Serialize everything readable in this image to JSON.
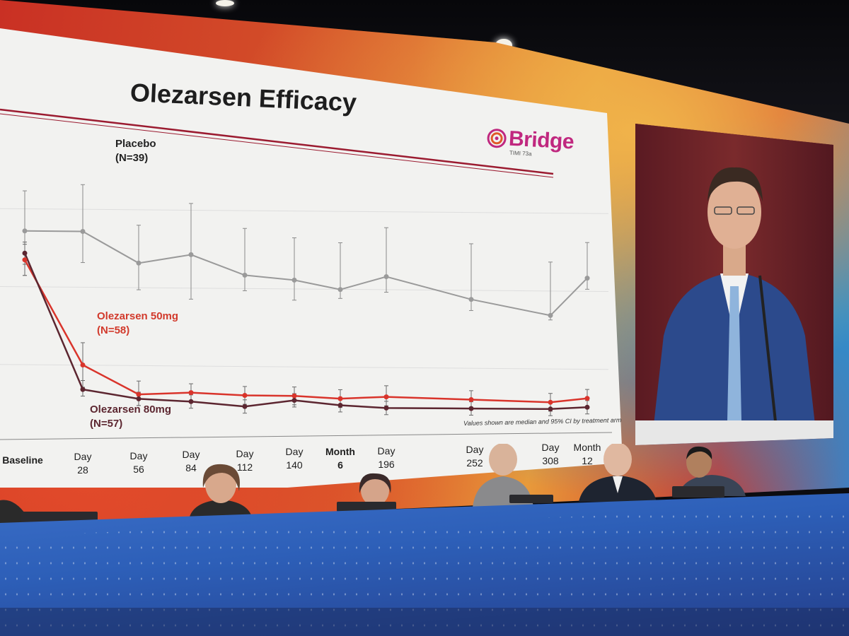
{
  "slide": {
    "title": "Olezarsen Efficacy",
    "logo_text": "Bridge",
    "logo_subtext": "TIMI 73a",
    "footnote": "Values shown are median and 95% CI by treatment arm",
    "colors": {
      "placebo": "#9a9a9a",
      "olezarsen_50mg": "#d9342b",
      "olezarsen_80mg": "#5c2630",
      "title_rule": "#9b1b30",
      "logo": "#c0287f"
    }
  },
  "chart_data": {
    "type": "line",
    "title": "Olezarsen Efficacy",
    "xlabel": "",
    "ylabel": "",
    "grid": true,
    "legend": "inline labels",
    "x_ticks": [
      {
        "top": "Baseline",
        "bottom": ""
      },
      {
        "top": "Day",
        "bottom": "28"
      },
      {
        "top": "Day",
        "bottom": "56"
      },
      {
        "top": "Day",
        "bottom": "84"
      },
      {
        "top": "Day",
        "bottom": "112"
      },
      {
        "top": "Day",
        "bottom": "140"
      },
      {
        "top": "Month",
        "bottom": "6"
      },
      {
        "top": "Day",
        "bottom": "196"
      },
      {
        "top": "Day",
        "bottom": "252"
      },
      {
        "top": "Day",
        "bottom": "308"
      },
      {
        "top": "Month",
        "bottom": "12"
      }
    ],
    "series": [
      {
        "name": "Placebo",
        "n_label": "(N=39)",
        "values": [
          100,
          100,
          86,
          90,
          81,
          79,
          75,
          81,
          71,
          64,
          81
        ],
        "ci_low": [
          80,
          86,
          74,
          70,
          74,
          70,
          71,
          74,
          66,
          62,
          76
        ],
        "ci_high": [
          118,
          121,
          103,
          113,
          102,
          98,
          96,
          103,
          96,
          88,
          97
        ]
      },
      {
        "name": "Olezarsen 50mg",
        "n_label": "(N=58)",
        "values": [
          87,
          40,
          27,
          28,
          27,
          27,
          26,
          27,
          26,
          25,
          27
        ],
        "ci_low": [
          80,
          30,
          22,
          24,
          23,
          23,
          22,
          23,
          22,
          21,
          23
        ],
        "ci_high": [
          94,
          50,
          33,
          32,
          31,
          31,
          30,
          32,
          30,
          29,
          31
        ]
      },
      {
        "name": "Olezarsen 80mg",
        "n_label": "(N=57)",
        "values": [
          90,
          29,
          25,
          24,
          22,
          25,
          23,
          22,
          22,
          22,
          23
        ],
        "ci_low": [
          85,
          26,
          22,
          21,
          19,
          22,
          20,
          19,
          19,
          19,
          20
        ],
        "ci_high": [
          95,
          33,
          28,
          27,
          25,
          28,
          26,
          25,
          25,
          25,
          26
        ]
      }
    ]
  }
}
